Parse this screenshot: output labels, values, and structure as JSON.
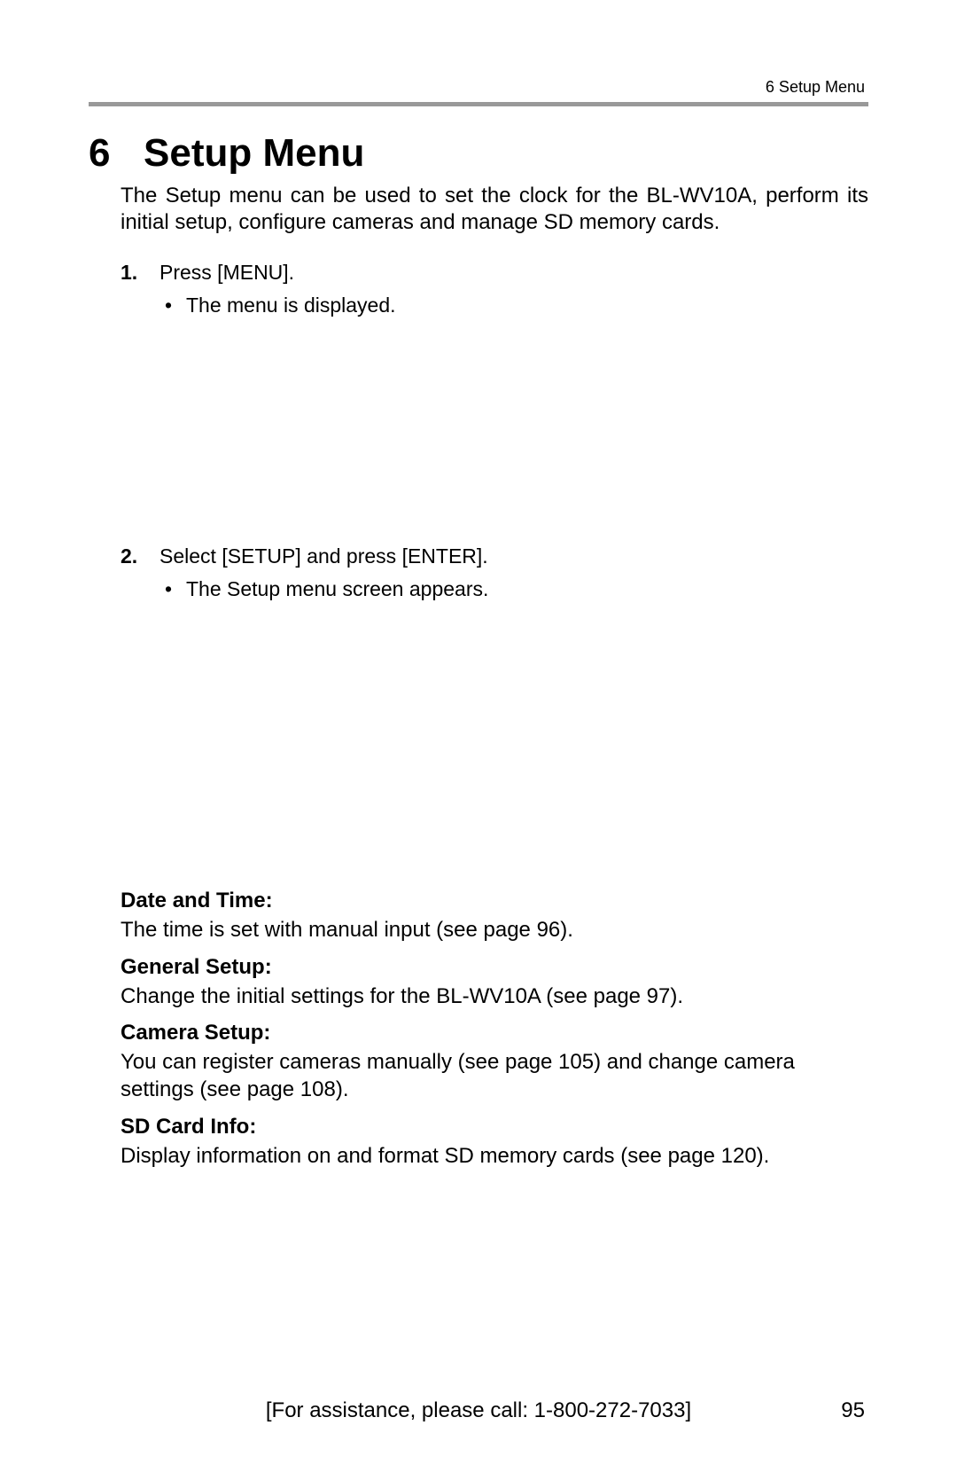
{
  "header": {
    "running_head": "6   Setup Menu"
  },
  "chapter": {
    "number": "6",
    "title": "Setup Menu",
    "intro": "The Setup menu can be used to set the clock for the BL-WV10A, perform its initial setup, configure cameras and manage SD memory cards."
  },
  "steps": [
    {
      "number": "1.",
      "text": "Press [MENU].",
      "bullets": [
        "The menu is displayed."
      ]
    },
    {
      "number": "2.",
      "text": "Select [SETUP] and press [ENTER].",
      "bullets": [
        "The Setup menu screen appears."
      ]
    }
  ],
  "definitions": [
    {
      "label": "Date and Time:",
      "body": "The time is set with manual input (see page 96)."
    },
    {
      "label": "General Setup:",
      "body": "Change the initial settings for the BL-WV10A (see page 97)."
    },
    {
      "label": "Camera Setup:",
      "body": "You can register cameras manually (see page 105) and change camera settings (see page 108)."
    },
    {
      "label": "SD Card Info:",
      "body": "Display information on and format SD memory cards (see page 120)."
    }
  ],
  "footer": {
    "assistance": "[For assistance, please call: 1-800-272-7033]",
    "page_number": "95"
  },
  "colors": {
    "text": "#000000",
    "background": "#ffffff",
    "rule": "#999999"
  },
  "typography": {
    "body_fontsize_pt": 18,
    "heading_fontsize_pt": 33,
    "font_family": "Helvetica"
  }
}
